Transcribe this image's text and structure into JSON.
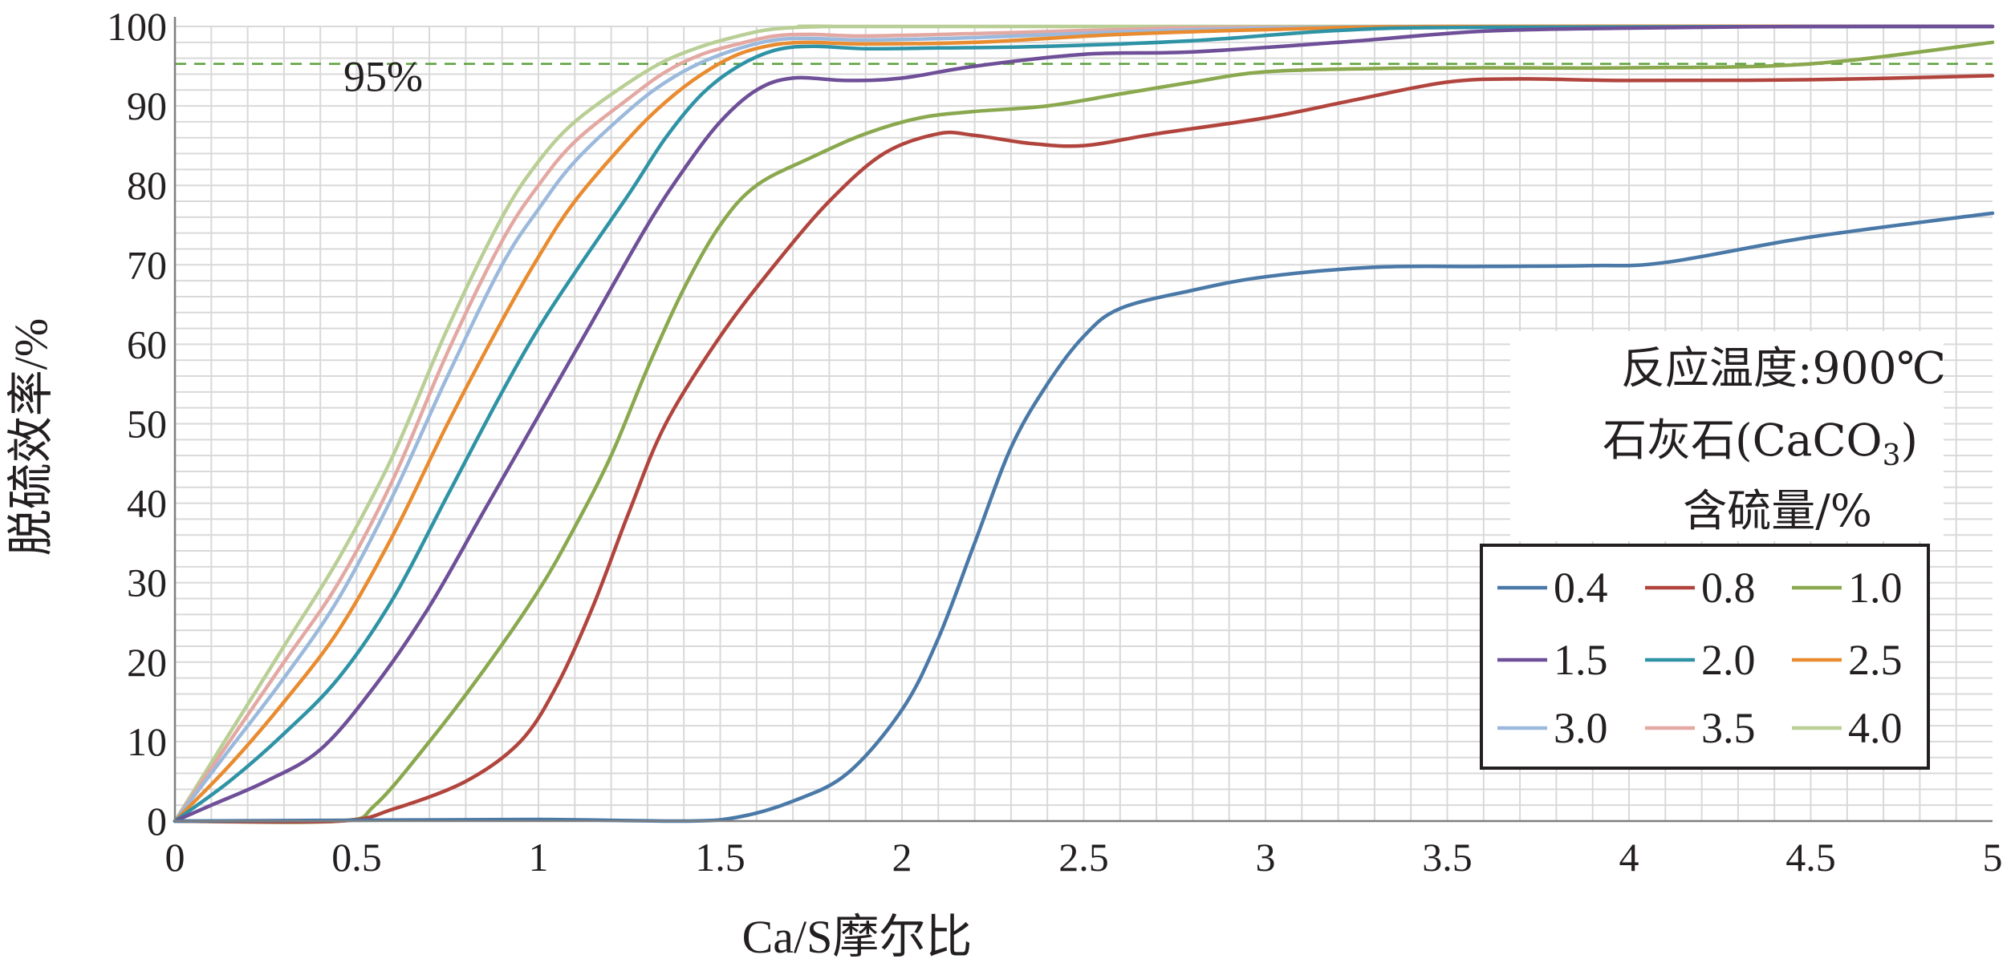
{
  "chart_data": {
    "type": "line",
    "title": "",
    "xlabel": "Ca/S摩尔比",
    "ylabel": "脱硫效率/%",
    "xlim": [
      0,
      5
    ],
    "ylim": [
      0,
      100
    ],
    "x_ticks": [
      "0",
      "0.5",
      "1",
      "1.5",
      "2",
      "2.5",
      "3",
      "3.5",
      "4",
      "4.5",
      "5"
    ],
    "y_ticks": [
      "0",
      "10",
      "20",
      "30",
      "40",
      "50",
      "60",
      "70",
      "80",
      "90",
      "100"
    ],
    "grid": true,
    "reference_line": {
      "y": 95.3,
      "label": "95%",
      "color": "#5aa13a"
    },
    "annotation": {
      "line1": "反应温度:900℃",
      "line2_main": "石灰石(CaCO",
      "line2_sub": "3",
      "line2_end": ")",
      "line3": "含硫量/%"
    },
    "legend_position": "right",
    "series": [
      {
        "name": "0.4",
        "color": "#4a79a8",
        "points": [
          [
            0,
            0
          ],
          [
            0.5,
            0.1
          ],
          [
            1.0,
            0.2
          ],
          [
            1.4,
            0
          ],
          [
            1.55,
            0.5
          ],
          [
            1.7,
            2.5
          ],
          [
            1.85,
            6
          ],
          [
            2.0,
            14
          ],
          [
            2.1,
            23
          ],
          [
            2.2,
            35
          ],
          [
            2.3,
            47
          ],
          [
            2.4,
            55
          ],
          [
            2.5,
            61
          ],
          [
            2.6,
            64.5
          ],
          [
            2.8,
            66.8
          ],
          [
            3.0,
            68.5
          ],
          [
            3.3,
            69.7
          ],
          [
            3.6,
            69.8
          ],
          [
            3.9,
            69.9
          ],
          [
            4.1,
            70.3
          ],
          [
            4.5,
            73.5
          ],
          [
            5.0,
            76.5
          ]
        ]
      },
      {
        "name": "0.8",
        "color": "#b1453e",
        "points": [
          [
            0,
            0
          ],
          [
            0.45,
            0
          ],
          [
            0.6,
            1.5
          ],
          [
            0.8,
            5
          ],
          [
            0.95,
            10
          ],
          [
            1.05,
            17
          ],
          [
            1.15,
            27
          ],
          [
            1.25,
            39
          ],
          [
            1.35,
            50
          ],
          [
            1.5,
            61
          ],
          [
            1.65,
            70
          ],
          [
            1.8,
            78
          ],
          [
            1.95,
            84
          ],
          [
            2.1,
            86.5
          ],
          [
            2.2,
            86.3
          ],
          [
            2.35,
            85.3
          ],
          [
            2.5,
            85
          ],
          [
            2.7,
            86.5
          ],
          [
            3.0,
            88.5
          ],
          [
            3.25,
            90.8
          ],
          [
            3.5,
            93
          ],
          [
            3.7,
            93.4
          ],
          [
            4.0,
            93.2
          ],
          [
            4.5,
            93.3
          ],
          [
            5.0,
            93.8
          ]
        ]
      },
      {
        "name": "1.0",
        "color": "#8aa84e",
        "points": [
          [
            0,
            0
          ],
          [
            0.45,
            0
          ],
          [
            0.55,
            2
          ],
          [
            0.7,
            10
          ],
          [
            0.85,
            19
          ],
          [
            1.0,
            29
          ],
          [
            1.1,
            37
          ],
          [
            1.2,
            46
          ],
          [
            1.3,
            57
          ],
          [
            1.4,
            67
          ],
          [
            1.5,
            75
          ],
          [
            1.6,
            80
          ],
          [
            1.75,
            83.5
          ],
          [
            1.9,
            86.5
          ],
          [
            2.05,
            88.5
          ],
          [
            2.2,
            89.3
          ],
          [
            2.4,
            90
          ],
          [
            2.6,
            91.5
          ],
          [
            2.8,
            93
          ],
          [
            3.0,
            94.3
          ],
          [
            3.3,
            94.7
          ],
          [
            3.6,
            94.8
          ],
          [
            4.0,
            94.8
          ],
          [
            4.5,
            95.3
          ],
          [
            5.0,
            98
          ]
        ]
      },
      {
        "name": "1.5",
        "color": "#6e4f98",
        "points": [
          [
            0,
            0
          ],
          [
            0.1,
            2
          ],
          [
            0.25,
            5
          ],
          [
            0.4,
            9
          ],
          [
            0.55,
            17
          ],
          [
            0.7,
            27
          ],
          [
            0.85,
            39
          ],
          [
            1.0,
            51
          ],
          [
            1.15,
            63
          ],
          [
            1.3,
            75
          ],
          [
            1.4,
            82
          ],
          [
            1.5,
            88
          ],
          [
            1.6,
            92
          ],
          [
            1.7,
            93.5
          ],
          [
            1.85,
            93.2
          ],
          [
            2.0,
            93.5
          ],
          [
            2.2,
            95
          ],
          [
            2.5,
            96.5
          ],
          [
            2.8,
            96.8
          ],
          [
            3.2,
            98
          ],
          [
            3.6,
            99.4
          ],
          [
            4.0,
            99.8
          ],
          [
            4.5,
            100
          ],
          [
            5.0,
            100
          ]
        ]
      },
      {
        "name": "2.0",
        "color": "#2f93a6",
        "points": [
          [
            0,
            0
          ],
          [
            0.15,
            5
          ],
          [
            0.3,
            11
          ],
          [
            0.45,
            18
          ],
          [
            0.6,
            28
          ],
          [
            0.75,
            41
          ],
          [
            0.9,
            54
          ],
          [
            1.0,
            62
          ],
          [
            1.1,
            69
          ],
          [
            1.25,
            79
          ],
          [
            1.35,
            86
          ],
          [
            1.45,
            91.5
          ],
          [
            1.55,
            95
          ],
          [
            1.65,
            97
          ],
          [
            1.75,
            97.5
          ],
          [
            1.9,
            97.2
          ],
          [
            2.1,
            97.3
          ],
          [
            2.4,
            97.5
          ],
          [
            2.8,
            98.2
          ],
          [
            3.2,
            99.5
          ],
          [
            3.6,
            99.9
          ],
          [
            5.0,
            100
          ]
        ]
      },
      {
        "name": "2.5",
        "color": "#e98b2f",
        "points": [
          [
            0,
            0
          ],
          [
            0.15,
            7
          ],
          [
            0.3,
            15
          ],
          [
            0.45,
            24
          ],
          [
            0.6,
            36
          ],
          [
            0.75,
            50
          ],
          [
            0.9,
            63
          ],
          [
            1.0,
            71
          ],
          [
            1.1,
            78
          ],
          [
            1.25,
            86
          ],
          [
            1.35,
            90.5
          ],
          [
            1.45,
            94
          ],
          [
            1.55,
            96.5
          ],
          [
            1.65,
            97.7
          ],
          [
            1.75,
            98
          ],
          [
            1.9,
            97.8
          ],
          [
            2.2,
            98
          ],
          [
            2.6,
            99
          ],
          [
            3.0,
            99.6
          ],
          [
            3.5,
            100
          ],
          [
            5.0,
            100
          ]
        ]
      },
      {
        "name": "3.0",
        "color": "#9bb9dc",
        "points": [
          [
            0,
            0
          ],
          [
            0.15,
            9
          ],
          [
            0.3,
            18
          ],
          [
            0.45,
            28
          ],
          [
            0.6,
            41
          ],
          [
            0.75,
            56
          ],
          [
            0.9,
            70
          ],
          [
            1.0,
            77
          ],
          [
            1.1,
            83
          ],
          [
            1.25,
            89.5
          ],
          [
            1.35,
            93
          ],
          [
            1.45,
            95.5
          ],
          [
            1.55,
            97.2
          ],
          [
            1.65,
            98.3
          ],
          [
            1.75,
            98.5
          ],
          [
            1.9,
            98.3
          ],
          [
            2.2,
            98.6
          ],
          [
            2.6,
            99.3
          ],
          [
            3.0,
            99.8
          ],
          [
            3.5,
            100
          ],
          [
            5.0,
            100
          ]
        ]
      },
      {
        "name": "3.5",
        "color": "#e4a8a3",
        "points": [
          [
            0,
            0
          ],
          [
            0.15,
            10
          ],
          [
            0.3,
            20
          ],
          [
            0.45,
            30
          ],
          [
            0.6,
            43
          ],
          [
            0.75,
            59
          ],
          [
            0.9,
            73
          ],
          [
            1.0,
            80
          ],
          [
            1.1,
            85.5
          ],
          [
            1.25,
            91
          ],
          [
            1.35,
            94.3
          ],
          [
            1.45,
            96.5
          ],
          [
            1.55,
            97.8
          ],
          [
            1.65,
            98.8
          ],
          [
            1.75,
            99
          ],
          [
            1.9,
            98.8
          ],
          [
            2.2,
            99.1
          ],
          [
            2.6,
            99.6
          ],
          [
            3.0,
            99.9
          ],
          [
            5.0,
            100
          ]
        ]
      },
      {
        "name": "4.0",
        "color": "#b9cf95",
        "points": [
          [
            0,
            0
          ],
          [
            0.15,
            11
          ],
          [
            0.3,
            22
          ],
          [
            0.45,
            33
          ],
          [
            0.6,
            46
          ],
          [
            0.75,
            62
          ],
          [
            0.9,
            76
          ],
          [
            1.0,
            83
          ],
          [
            1.1,
            88
          ],
          [
            1.25,
            93
          ],
          [
            1.35,
            95.7
          ],
          [
            1.45,
            97.5
          ],
          [
            1.55,
            98.8
          ],
          [
            1.65,
            99.7
          ],
          [
            1.8,
            100
          ],
          [
            2.0,
            100
          ],
          [
            5.0,
            100
          ]
        ]
      }
    ]
  }
}
